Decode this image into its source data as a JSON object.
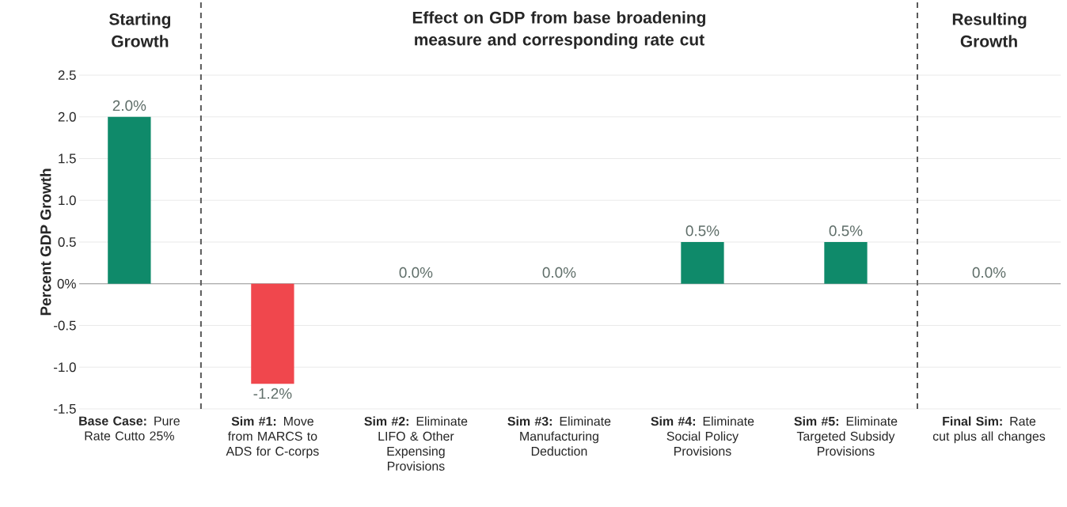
{
  "chart_data": {
    "type": "bar",
    "ylabel": "Percent GDP Growth",
    "annotations": [
      "Starting Growth",
      "Effect on GDP from base broadening measure and corresponding rate cut",
      "Resulting Growth"
    ],
    "categories": [
      "**Base Case:** Pure Rate Cutto 25%",
      "**Sim #1:** Move from MARCS to ADS for C-corps",
      "**Sim #2:** Eliminate LIFO & Other Expensing Provisions",
      "**Sim #3:** Eliminate Manufacturing Deduction",
      "**Sim #4:** Eliminate Social Policy Provisions",
      "**Sim #5:** Eliminate Targeted Subsidy Provisions",
      "**Final Sim:** Rate cut plus all changes"
    ],
    "values": [
      2.0,
      -1.2,
      0.0,
      0.0,
      0.5,
      0.5,
      0.0
    ],
    "colors": [
      "#0f8a6a",
      "#f0474d",
      "#0f8a6a",
      "#0f8a6a",
      "#0f8a6a",
      "#0f8a6a",
      "#0f8a6a"
    ],
    "value_labels": [
      "2.0%",
      "-1.2%",
      "0.0%",
      "0.0%",
      "0.5%",
      "0.5%",
      "0.0%"
    ],
    "ylim": [
      -1.5,
      2.5
    ],
    "yticks": [
      {
        "value": -1.5,
        "label": "-1.5"
      },
      {
        "value": -1.0,
        "label": "-1.0"
      },
      {
        "value": -0.5,
        "label": "-0.5"
      },
      {
        "value": 0,
        "label": "0%"
      },
      {
        "value": 0.5,
        "label": "0.5"
      },
      {
        "value": 1.0,
        "label": "1.0"
      },
      {
        "value": 1.5,
        "label": "1.5"
      },
      {
        "value": 2.0,
        "label": "2.0"
      },
      {
        "value": 2.5,
        "label": "2.5"
      }
    ],
    "grid": "y"
  }
}
